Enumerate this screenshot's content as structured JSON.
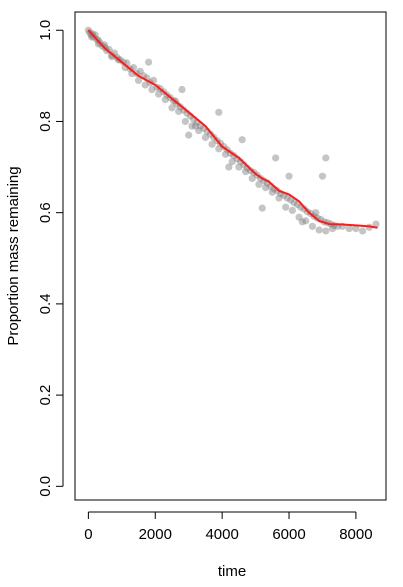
{
  "chart_data": {
    "type": "scatter",
    "title": "",
    "xlabel": "time",
    "ylabel": "Proportion mass remaining",
    "xlim": [
      -400,
      8900
    ],
    "ylim": [
      -0.03,
      1.04
    ],
    "xticks": [
      0,
      2000,
      4000,
      6000,
      8000
    ],
    "yticks": [
      0.0,
      0.2,
      0.4,
      0.6,
      0.8,
      1.0
    ],
    "grid": false,
    "legend": "none",
    "point_color": "#7f7f7f",
    "line_color": "#ff1a1a",
    "scatter_points": {
      "x": [
        0,
        40,
        80,
        120,
        160,
        200,
        250,
        300,
        350,
        420,
        480,
        550,
        620,
        700,
        780,
        860,
        950,
        1050,
        1150,
        1250,
        1350,
        1450,
        1550,
        1650,
        1750,
        1850,
        1950,
        2050,
        2150,
        2250,
        2350,
        2450,
        2550,
        2650,
        2750,
        2850,
        2950,
        3050,
        3150,
        3250,
        3350,
        3450,
        3550,
        3650,
        3750,
        3850,
        3950,
        4050,
        4150,
        4250,
        4350,
        4450,
        4550,
        4650,
        4750,
        4850,
        4950,
        5050,
        5150,
        5250,
        5350,
        5450,
        5550,
        5650,
        5750,
        5850,
        5950,
        6050,
        6150,
        6250,
        6350,
        6450,
        6550,
        6650,
        6750,
        6850,
        6950,
        7050,
        7150,
        7250,
        7350,
        7450,
        7600,
        7800,
        8000,
        8200,
        8400,
        8600,
        100,
        300,
        500,
        700,
        900,
        1100,
        1300,
        1500,
        1700,
        1900,
        2100,
        2300,
        2500,
        2700,
        2900,
        3100,
        3300,
        3500,
        3700,
        3900,
        4100,
        4300,
        4500,
        4700,
        4900,
        5100,
        5300,
        5500,
        5700,
        5900,
        6100,
        6300,
        6500,
        6700,
        6900,
        7100,
        7300,
        2600,
        3000,
        3900,
        4200,
        5200,
        5600,
        6000,
        6400,
        6800,
        7000,
        3200,
        4600,
        2800,
        1800,
        7100
      ],
      "y": [
        1.0,
        0.995,
        0.99,
        0.992,
        0.985,
        0.99,
        0.98,
        0.978,
        0.972,
        0.965,
        0.968,
        0.955,
        0.958,
        0.945,
        0.95,
        0.94,
        0.935,
        0.93,
        0.928,
        0.915,
        0.918,
        0.905,
        0.91,
        0.9,
        0.895,
        0.885,
        0.89,
        0.875,
        0.872,
        0.865,
        0.858,
        0.852,
        0.845,
        0.838,
        0.832,
        0.825,
        0.818,
        0.812,
        0.805,
        0.798,
        0.79,
        0.785,
        0.778,
        0.772,
        0.765,
        0.758,
        0.752,
        0.745,
        0.738,
        0.73,
        0.725,
        0.718,
        0.712,
        0.705,
        0.698,
        0.692,
        0.688,
        0.682,
        0.675,
        0.67,
        0.665,
        0.658,
        0.652,
        0.648,
        0.642,
        0.638,
        0.632,
        0.628,
        0.622,
        0.618,
        0.612,
        0.608,
        0.602,
        0.598,
        0.592,
        0.588,
        0.585,
        0.58,
        0.578,
        0.575,
        0.572,
        0.57,
        0.57,
        0.565,
        0.565,
        0.56,
        0.568,
        0.575,
        0.985,
        0.97,
        0.962,
        0.942,
        0.935,
        0.918,
        0.905,
        0.89,
        0.88,
        0.87,
        0.86,
        0.848,
        0.83,
        0.822,
        0.8,
        0.79,
        0.78,
        0.765,
        0.75,
        0.74,
        0.728,
        0.712,
        0.7,
        0.69,
        0.675,
        0.662,
        0.655,
        0.645,
        0.632,
        0.612,
        0.605,
        0.59,
        0.582,
        0.57,
        0.562,
        0.56,
        0.565,
        0.845,
        0.77,
        0.82,
        0.7,
        0.61,
        0.72,
        0.68,
        0.58,
        0.6,
        0.68,
        0.79,
        0.76,
        0.87,
        0.93,
        0.72
      ]
    },
    "smooth_line": {
      "x": [
        0,
        500,
        1000,
        1500,
        2000,
        2500,
        3000,
        3500,
        4000,
        4500,
        5000,
        5200,
        5400,
        5700,
        6000,
        6300,
        6600,
        6900,
        7200,
        7600,
        8000,
        8400,
        8650
      ],
      "y": [
        1.0,
        0.96,
        0.93,
        0.9,
        0.88,
        0.85,
        0.82,
        0.79,
        0.745,
        0.72,
        0.685,
        0.675,
        0.668,
        0.648,
        0.64,
        0.625,
        0.6,
        0.582,
        0.575,
        0.574,
        0.572,
        0.57,
        0.567
      ]
    }
  }
}
